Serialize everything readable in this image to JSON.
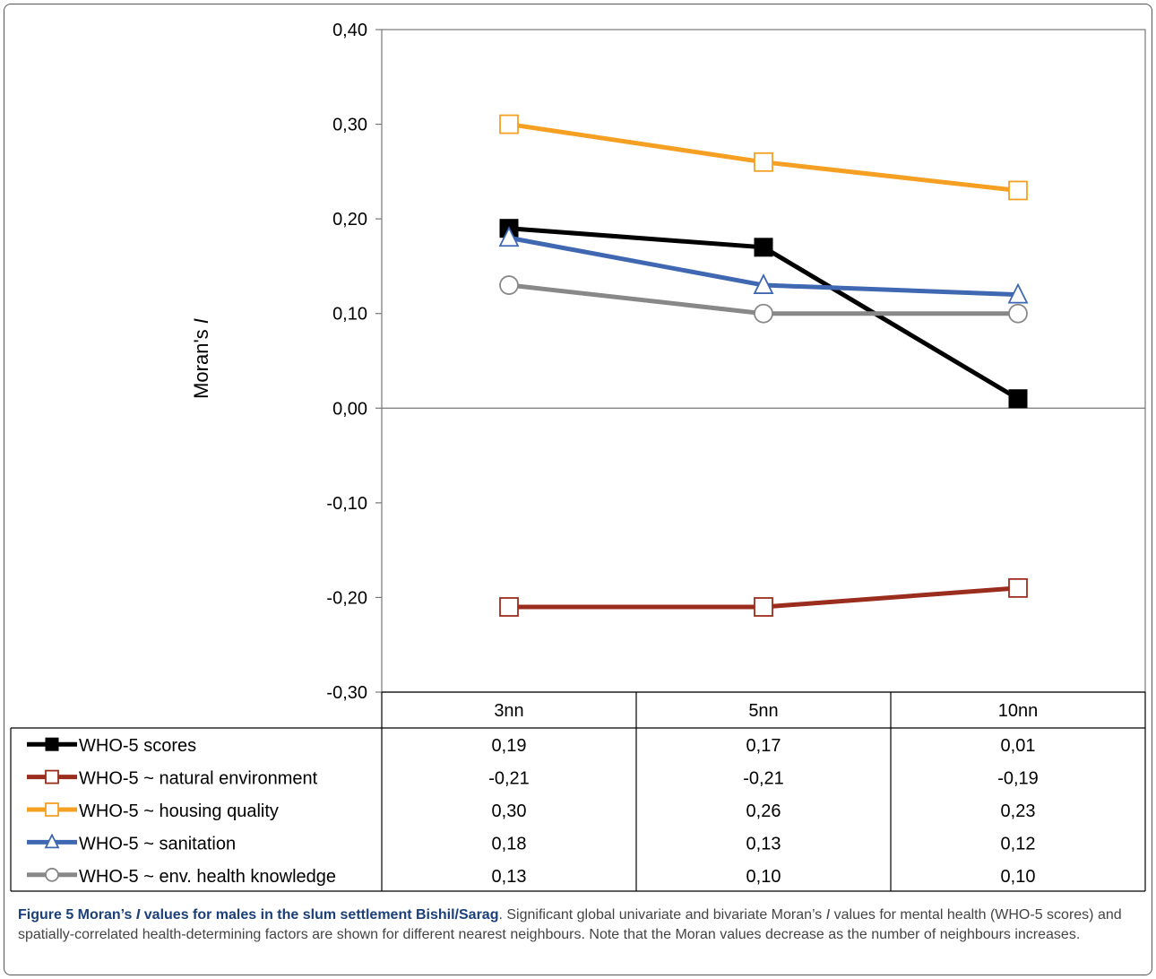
{
  "chart_data": {
    "type": "line",
    "ylabel": "Moran's I",
    "ylabel_prefix": "Moran's ",
    "ylabel_italic": "I",
    "yticks": [
      "0,40",
      "0,30",
      "0,20",
      "0,10",
      "0,00",
      "-0,10",
      "-0,20",
      "-0,30"
    ],
    "ylim": [
      -0.3,
      0.4
    ],
    "categories": [
      "3nn",
      "5nn",
      "10nn"
    ],
    "series": [
      {
        "name": "WHO-5 scores",
        "values": [
          0.19,
          0.17,
          0.01
        ],
        "labels": [
          "0,19",
          "0,17",
          "0,01"
        ],
        "color": "#000000",
        "marker": "square-filled"
      },
      {
        "name": "WHO-5 ~ natural environment",
        "values": [
          -0.21,
          -0.21,
          -0.19
        ],
        "labels": [
          "-0,21",
          "-0,21",
          "-0,19"
        ],
        "color": "#9b2d1f",
        "marker": "square-open"
      },
      {
        "name": "WHO-5 ~ housing quality",
        "values": [
          0.3,
          0.26,
          0.23
        ],
        "labels": [
          "0,30",
          "0,26",
          "0,23"
        ],
        "color": "#f5a023",
        "marker": "square-open"
      },
      {
        "name": "WHO-5 ~ sanitation",
        "values": [
          0.18,
          0.13,
          0.12
        ],
        "labels": [
          "0,18",
          "0,13",
          "0,12"
        ],
        "color": "#4068b2",
        "marker": "triangle-open"
      },
      {
        "name": "WHO-5 ~ env. health knowledge",
        "values": [
          0.13,
          0.1,
          0.1
        ],
        "labels": [
          "0,13",
          "0,10",
          "0,10"
        ],
        "color": "#888888",
        "marker": "circle-open"
      }
    ],
    "legend": "table-below"
  },
  "caption": {
    "label": "Figure 5 Moran’s ",
    "label_italic": "I",
    "label_rest": " values for males in the slum settlement Bishil/Sarag",
    "t1": ". Significant global univariate and bivariate Moran’s ",
    "t1_italic": "I",
    "t2": " values for mental health (WHO-5 scores) and spatially-correlated health-determining factors are shown for different nearest neighbours. Note that the Moran values decrease as the number of neighbours increases."
  }
}
